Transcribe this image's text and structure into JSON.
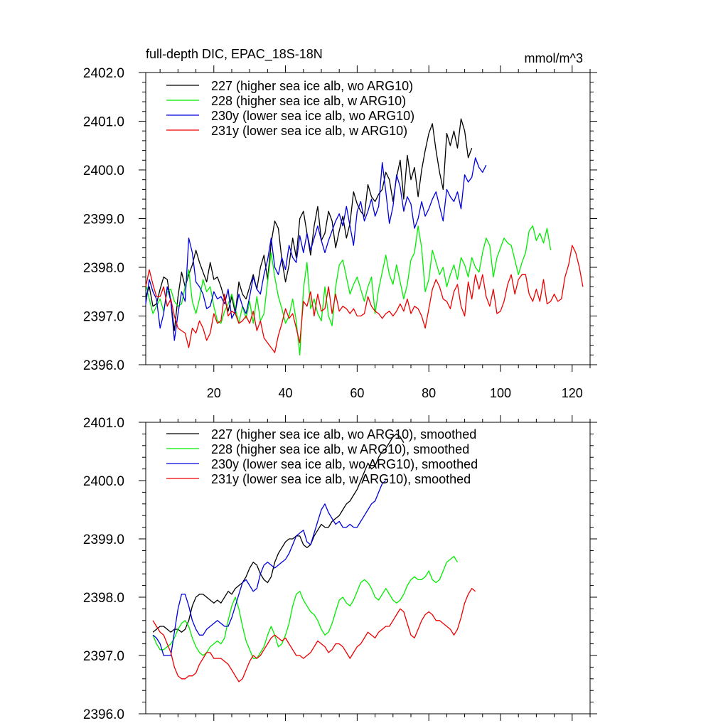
{
  "header": {
    "title": "full-depth DIC, EPAC_18S-18N",
    "units": "mmol/m^3"
  },
  "colors": {
    "227": "#000000",
    "228": "#00ee00",
    "230y": "#0000dd",
    "231y": "#ee0000"
  },
  "chart_data": [
    {
      "type": "line",
      "panel": "top",
      "xlim": [
        1,
        125
      ],
      "ylim": [
        2396.0,
        2402.0
      ],
      "xticks": [
        20,
        40,
        60,
        80,
        100,
        120
      ],
      "xtick_labels": [
        "20",
        "40",
        "60",
        "80",
        "100",
        "120"
      ],
      "yticks": [
        2396.0,
        2397.0,
        2398.0,
        2399.0,
        2400.0,
        2401.0,
        2402.0
      ],
      "ytick_labels": [
        "2396.0",
        "2397.0",
        "2398.0",
        "2399.0",
        "2400.0",
        "2401.0",
        "2402.0"
      ],
      "legend_position": "top-left",
      "series": [
        {
          "key": "227",
          "name": "227 (higher sea ice alb, wo ARG10)",
          "x_start": 1,
          "values": [
            2397.4,
            2397.6,
            2397.2,
            2397.25,
            2397.55,
            2397.8,
            2397.75,
            2397.3,
            2396.7,
            2397.4,
            2397.9,
            2397.6,
            2397.85,
            2398.05,
            2398.35,
            2398.1,
            2397.9,
            2397.7,
            2398.1,
            2397.75,
            2397.8,
            2397.6,
            2397.35,
            2397.1,
            2397.4,
            2397.05,
            2397.7,
            2397.45,
            2397.35,
            2397.6,
            2397.85,
            2397.55,
            2398.0,
            2398.25,
            2397.75,
            2398.5,
            2398.95,
            2398.8,
            2398.15,
            2397.7,
            2398.05,
            2398.6,
            2398.2,
            2399.0,
            2399.15,
            2398.7,
            2398.25,
            2398.85,
            2399.25,
            2398.55,
            2398.7,
            2399.15,
            2398.95,
            2398.4,
            2398.75,
            2399.05,
            2398.6,
            2398.9,
            2399.55,
            2399.3,
            2399.15,
            2399.05,
            2399.7,
            2399.45,
            2399.35,
            2399.5,
            2399.6,
            2399.95,
            2399.8,
            2399.35,
            2399.85,
            2400.2,
            2399.4,
            2400.3,
            2399.8,
            2400.05,
            2399.45,
            2400.0,
            2400.4,
            2400.75,
            2400.95,
            2400.4,
            2399.95,
            2399.6,
            2400.75,
            2400.5,
            2400.8,
            2400.45,
            2401.05,
            2400.8,
            2400.25,
            2400.45
          ]
        },
        {
          "key": "228",
          "name": "228 (higher sea ice alb, w ARG10)",
          "x_start": 1,
          "values": [
            2397.65,
            2397.35,
            2397.05,
            2397.2,
            2397.35,
            2397.1,
            2397.5,
            2397.55,
            2397.3,
            2397.2,
            2397.25,
            2397.6,
            2397.95,
            2397.3,
            2397.05,
            2397.35,
            2397.75,
            2397.5,
            2397.6,
            2397.2,
            2396.9,
            2396.85,
            2397.1,
            2397.25,
            2397.45,
            2397.15,
            2396.85,
            2397.2,
            2396.95,
            2397.3,
            2396.85,
            2397.4,
            2396.9,
            2397.05,
            2397.7,
            2398.3,
            2397.8,
            2397.4,
            2397.15,
            2396.85,
            2397.0,
            2397.35,
            2396.9,
            2396.2,
            2397.55,
            2398.1,
            2397.15,
            2397.35,
            2397.05,
            2396.9,
            2397.6,
            2397.0,
            2396.8,
            2397.6,
            2398.05,
            2398.15,
            2397.8,
            2397.45,
            2397.65,
            2397.8,
            2397.55,
            2397.3,
            2397.6,
            2397.8,
            2397.05,
            2397.55,
            2397.9,
            2398.25,
            2397.85,
            2397.65,
            2398.05,
            2397.7,
            2397.35,
            2397.65,
            2398.15,
            2398.3,
            2398.85,
            2398.4,
            2397.5,
            2397.75,
            2398.35,
            2398.1,
            2397.85,
            2398.0,
            2397.6,
            2397.85,
            2398.05,
            2397.75,
            2398.2,
            2398.05,
            2397.8,
            2398.2,
            2398.0,
            2397.9,
            2398.3,
            2398.6,
            2398.45,
            2397.8,
            2398.2,
            2398.4,
            2398.6,
            2398.5,
            2398.45,
            2398.15,
            2397.85,
            2398.1,
            2398.3,
            2398.75,
            2398.85,
            2398.55,
            2398.7,
            2398.5,
            2398.8,
            2398.35
          ]
        },
        {
          "key": "230y",
          "name": "230y (lower sea ice alb, wo ARG10)",
          "x_start": 1,
          "values": [
            2397.25,
            2397.75,
            2397.5,
            2397.35,
            2396.75,
            2397.05,
            2397.6,
            2397.3,
            2396.5,
            2397.05,
            2397.5,
            2397.3,
            2398.6,
            2398.3,
            2397.7,
            2397.6,
            2397.45,
            2397.15,
            2397.2,
            2397.5,
            2397.35,
            2397.4,
            2397.25,
            2397.55,
            2396.95,
            2397.1,
            2397.45,
            2397.2,
            2397.05,
            2397.4,
            2397.8,
            2397.55,
            2397.45,
            2397.85,
            2398.15,
            2398.6,
            2398.0,
            2397.85,
            2398.2,
            2397.95,
            2398.45,
            2398.2,
            2398.1,
            2398.65,
            2398.3,
            2398.7,
            2398.35,
            2398.6,
            2398.85,
            2398.55,
            2398.3,
            2398.55,
            2398.75,
            2398.95,
            2399.1,
            2398.85,
            2399.25,
            2398.85,
            2398.45,
            2399.15,
            2399.35,
            2398.95,
            2399.15,
            2399.4,
            2399.05,
            2399.25,
            2400.15,
            2399.55,
            2398.9,
            2399.25,
            2399.9,
            2399.65,
            2399.15,
            2399.45,
            2399.3,
            2398.8,
            2399.0,
            2399.35,
            2399.05,
            2399.2,
            2399.4,
            2399.55,
            2399.25,
            2398.95,
            2399.6,
            2399.45,
            2399.35,
            2399.55,
            2399.2,
            2399.9,
            2399.75,
            2399.85,
            2400.25,
            2400.05,
            2399.95,
            2400.1
          ]
        },
        {
          "key": "231y",
          "name": "231y (lower sea ice alb, w ARG10)",
          "x_start": 1,
          "values": [
            2397.6,
            2397.95,
            2397.65,
            2397.4,
            2397.4,
            2397.6,
            2397.2,
            2397.35,
            2397.0,
            2396.75,
            2396.7,
            2396.65,
            2396.35,
            2396.75,
            2396.65,
            2396.9,
            2396.75,
            2396.5,
            2396.65,
            2397.05,
            2396.85,
            2396.9,
            2397.45,
            2397.0,
            2397.1,
            2397.05,
            2396.85,
            2396.9,
            2397.0,
            2396.85,
            2397.1,
            2396.7,
            2396.9,
            2396.55,
            2396.45,
            2396.35,
            2396.25,
            2396.6,
            2396.85,
            2397.15,
            2396.95,
            2397.05,
            2396.75,
            2396.45,
            2397.3,
            2397.2,
            2397.5,
            2397.0,
            2397.45,
            2397.1,
            2397.15,
            2397.6,
            2397.05,
            2397.45,
            2397.1,
            2397.2,
            2397.15,
            2397.05,
            2397.15,
            2397.0,
            2397.0,
            2397.05,
            2397.4,
            2397.2,
            2397.1,
            2397.05,
            2396.95,
            2397.05,
            2397.1,
            2397.0,
            2397.1,
            2397.25,
            2397.1,
            2397.35,
            2397.05,
            2397.2,
            2397.15,
            2397.0,
            2396.75,
            2397.15,
            2397.55,
            2397.75,
            2397.6,
            2397.35,
            2397.3,
            2397.15,
            2397.5,
            2397.65,
            2397.2,
            2397.0,
            2397.7,
            2397.35,
            2397.85,
            2397.55,
            2397.85,
            2397.4,
            2397.2,
            2397.55,
            2397.05,
            2397.1,
            2397.3,
            2397.65,
            2397.85,
            2397.45,
            2397.75,
            2397.85,
            2397.85,
            2397.45,
            2397.3,
            2397.55,
            2397.3,
            2397.75,
            2397.25,
            2397.3,
            2397.45,
            2397.3,
            2397.35,
            2397.8,
            2398.05,
            2398.45,
            2398.3,
            2398.0,
            2397.6
          ]
        }
      ]
    },
    {
      "type": "line",
      "panel": "bottom",
      "xlim": [
        1,
        125
      ],
      "ylim": [
        2396.0,
        2401.0
      ],
      "xticks": [
        20,
        40,
        60,
        80,
        100,
        120
      ],
      "xtick_labels": [],
      "yticks": [
        2396.0,
        2397.0,
        2398.0,
        2399.0,
        2400.0,
        2401.0
      ],
      "ytick_labels": [
        "2396.0",
        "2397.0",
        "2398.0",
        "2399.0",
        "2400.0",
        "2401.0"
      ],
      "legend_position": "top-left",
      "series": [
        {
          "key": "227",
          "name": "227 (higher sea ice alb, wo ARG10), smoothed",
          "x_start": 3,
          "values": [
            2397.4,
            2397.45,
            2397.5,
            2397.5,
            2397.45,
            2397.4,
            2397.45,
            2397.45,
            2397.4,
            2397.45,
            2397.6,
            2397.85,
            2398.0,
            2398.05,
            2398.05,
            2398.0,
            2397.95,
            2397.9,
            2397.95,
            2397.9,
            2398.0,
            2398.1,
            2398.05,
            2398.15,
            2398.2,
            2398.25,
            2398.35,
            2398.5,
            2398.6,
            2398.55,
            2398.4,
            2398.3,
            2398.25,
            2398.35,
            2398.6,
            2398.75,
            2398.85,
            2398.95,
            2399.0,
            2399.0,
            2399.05,
            2399.05,
            2398.9,
            2398.85,
            2398.9,
            2399.05,
            2399.15,
            2399.25,
            2399.2,
            2399.2,
            2399.3,
            2399.35,
            2399.4,
            2399.5,
            2399.6,
            2399.65,
            2399.75,
            2399.85,
            2400.0,
            2400.15,
            2400.3,
            2400.2,
            2400.25,
            2400.4,
            2400.5,
            2400.55,
            2400.65,
            2400.75,
            2400.8,
            2400.75,
            2400.65
          ]
        },
        {
          "key": "228",
          "name": "228 (higher sea ice alb, w ARG10), smoothed",
          "x_start": 3,
          "values": [
            2397.35,
            2397.2,
            2397.1,
            2397.1,
            2397.15,
            2397.2,
            2397.3,
            2397.45,
            2397.55,
            2397.6,
            2397.5,
            2397.3,
            2397.15,
            2397.05,
            2397.0,
            2397.05,
            2397.15,
            2397.2,
            2397.25,
            2397.2,
            2397.3,
            2397.6,
            2397.85,
            2398.0,
            2397.8,
            2397.5,
            2397.25,
            2397.1,
            2396.95,
            2396.95,
            2397.05,
            2397.15,
            2397.35,
            2397.5,
            2397.35,
            2397.15,
            2397.2,
            2397.35,
            2397.55,
            2397.85,
            2398.05,
            2398.1,
            2397.95,
            2397.85,
            2397.75,
            2397.7,
            2397.6,
            2397.45,
            2397.35,
            2397.4,
            2397.55,
            2397.75,
            2397.95,
            2398.0,
            2397.9,
            2397.85,
            2397.95,
            2398.1,
            2398.25,
            2398.3,
            2398.25,
            2398.15,
            2398.0,
            2397.95,
            2398.05,
            2398.15,
            2398.05,
            2397.95,
            2397.9,
            2397.95,
            2398.05,
            2398.2,
            2398.3,
            2398.35,
            2398.3,
            2398.3,
            2398.35,
            2398.45,
            2398.3,
            2398.25,
            2398.3,
            2398.45,
            2398.6,
            2398.65,
            2398.7,
            2398.6
          ]
        },
        {
          "key": "230y",
          "name": "230y (lower sea ice alb, wo ARG10), smoothed",
          "x_start": 3,
          "values": [
            2397.35,
            2397.3,
            2397.2,
            2397.0,
            2397.0,
            2397.0,
            2397.4,
            2397.8,
            2398.05,
            2398.05,
            2397.85,
            2397.6,
            2397.45,
            2397.35,
            2397.35,
            2397.45,
            2397.5,
            2397.55,
            2397.6,
            2397.55,
            2397.5,
            2397.5,
            2397.65,
            2397.85,
            2398.05,
            2398.25,
            2398.3,
            2398.2,
            2398.1,
            2398.15,
            2398.4,
            2398.55,
            2398.6,
            2398.55,
            2398.5,
            2398.55,
            2398.6,
            2398.65,
            2398.75,
            2398.9,
            2399.05,
            2399.1,
            2399.15,
            2398.95,
            2398.9,
            2399.1,
            2399.3,
            2399.5,
            2399.6,
            2399.45,
            2399.35,
            2399.25,
            2399.3,
            2399.2,
            2399.2,
            2399.25,
            2399.2,
            2399.2,
            2399.3,
            2399.4,
            2399.5,
            2399.6,
            2399.65,
            2399.8,
            2399.95,
            2400.0
          ]
        },
        {
          "key": "231y",
          "name": "231y (lower sea ice alb, w ARG10), smoothed",
          "x_start": 3,
          "values": [
            2397.6,
            2397.5,
            2397.4,
            2397.35,
            2397.2,
            2397.05,
            2396.8,
            2396.65,
            2396.6,
            2396.6,
            2396.65,
            2396.65,
            2396.7,
            2396.85,
            2396.95,
            2397.05,
            2397.05,
            2396.95,
            2396.95,
            2396.95,
            2396.9,
            2396.85,
            2396.75,
            2396.65,
            2396.55,
            2396.6,
            2396.75,
            2396.9,
            2397.0,
            2396.95,
            2397.0,
            2397.1,
            2397.2,
            2397.3,
            2397.35,
            2397.3,
            2397.25,
            2397.3,
            2397.2,
            2397.1,
            2397.0,
            2397.0,
            2396.95,
            2397.0,
            2397.05,
            2397.15,
            2397.25,
            2397.2,
            2397.15,
            2397.05,
            2397.1,
            2397.2,
            2397.2,
            2397.15,
            2397.05,
            2396.95,
            2397.05,
            2397.15,
            2397.2,
            2397.3,
            2397.4,
            2397.35,
            2397.3,
            2397.4,
            2397.45,
            2397.5,
            2397.5,
            2397.6,
            2397.7,
            2397.8,
            2397.75,
            2397.55,
            2397.35,
            2397.3,
            2397.45,
            2397.6,
            2397.7,
            2397.75,
            2397.7,
            2397.6,
            2397.6,
            2397.55,
            2397.5,
            2397.45,
            2397.35,
            2397.45,
            2397.65,
            2397.9,
            2398.05,
            2398.15,
            2398.1
          ]
        }
      ]
    }
  ]
}
